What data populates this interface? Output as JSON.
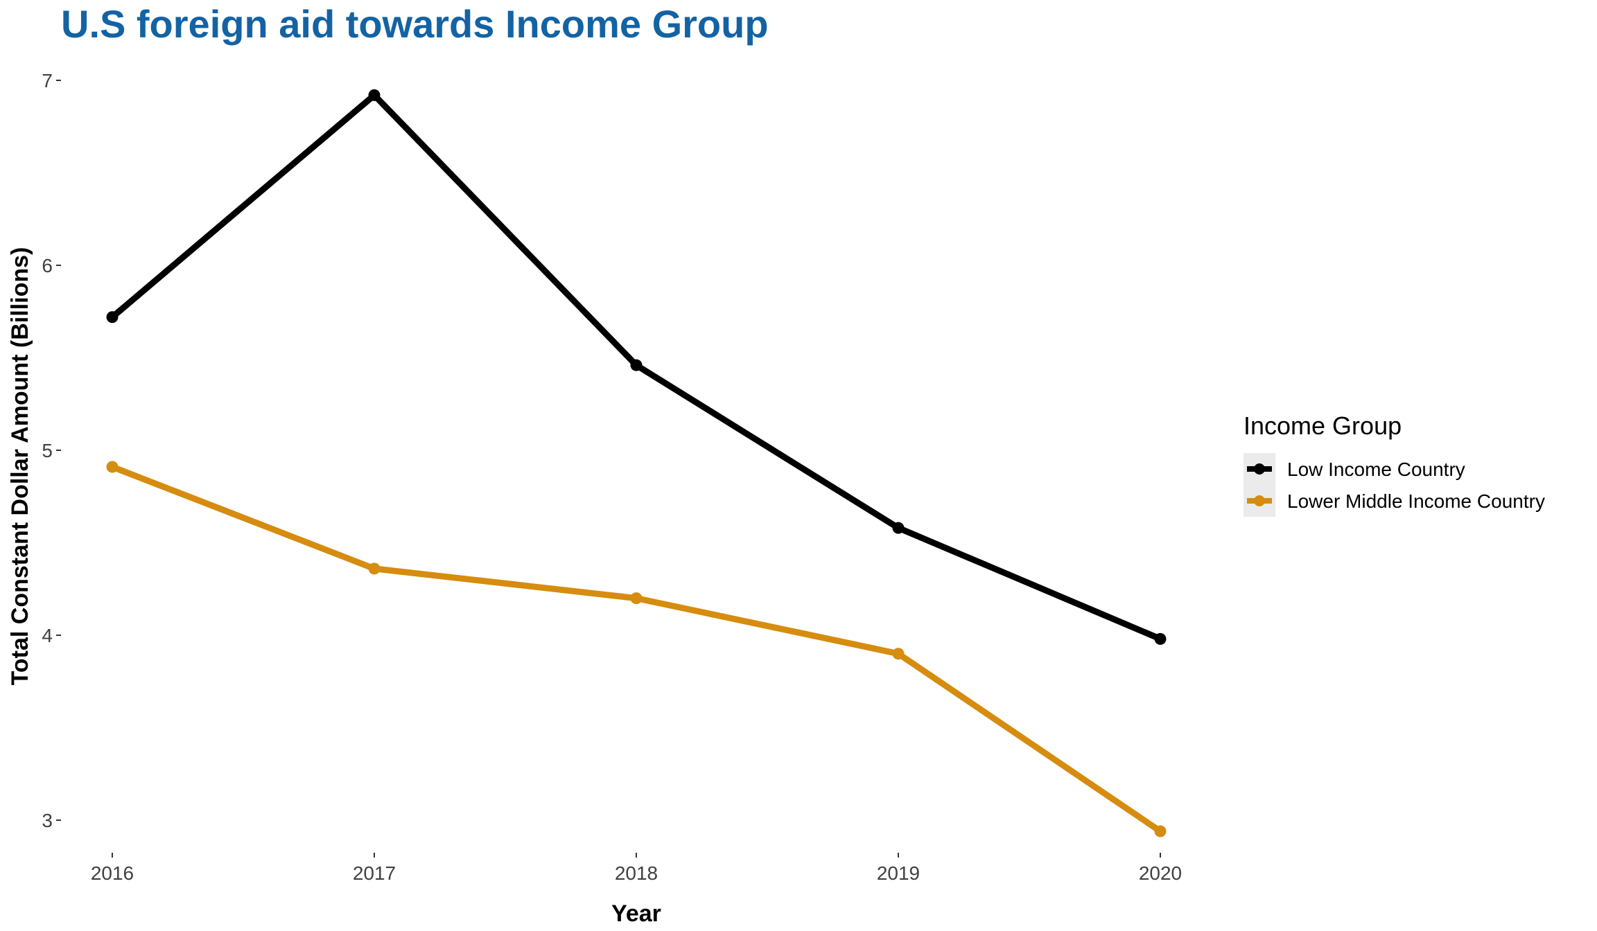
{
  "chart_data": {
    "type": "line",
    "title": "U.S foreign aid towards Income Group",
    "xlabel": "Year",
    "ylabel": "Total Constant Dollar Amount (Billions)",
    "x": [
      2016,
      2017,
      2018,
      2019,
      2020
    ],
    "x_tick_labels": [
      "2016",
      "2017",
      "2018",
      "2019",
      "2020"
    ],
    "y_ticks": [
      3,
      4,
      5,
      6,
      7
    ],
    "y_tick_labels": [
      "3",
      "4",
      "5",
      "6",
      "7"
    ],
    "ylim": [
      2.8,
      7.05
    ],
    "grid": false,
    "legend_position": "right",
    "legend_title": "Income Group",
    "series": [
      {
        "name": "Low Income Country",
        "color": "#000000",
        "values": [
          5.72,
          6.92,
          5.46,
          4.58,
          3.98
        ]
      },
      {
        "name": "Lower Middle Income Country",
        "color": "#d68c0f",
        "values": [
          4.91,
          4.36,
          4.2,
          3.9,
          2.94
        ]
      }
    ]
  }
}
